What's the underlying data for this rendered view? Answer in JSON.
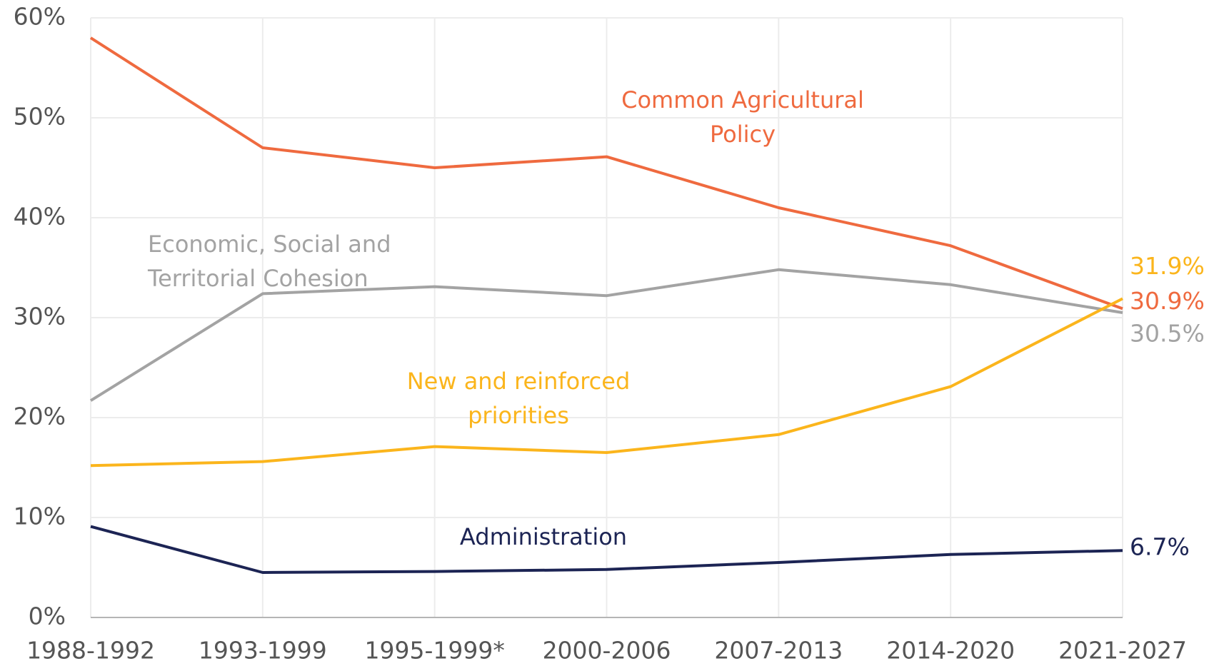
{
  "chart_data": {
    "type": "line",
    "categories": [
      "1988-1992",
      "1993-1999",
      "1995-1999*",
      "2000-2006",
      "2007-2013",
      "2014-2020",
      "2021-2027"
    ],
    "series": [
      {
        "name": "Common Agricultural Policy",
        "color": "#ef6a3f",
        "values": [
          58,
          47,
          45,
          46.1,
          41,
          37.2,
          30.9
        ],
        "value_labels": [
          null,
          null,
          null,
          null,
          null,
          null,
          "30.9%"
        ]
      },
      {
        "name": "Economic, Social and Territorial Cohesion",
        "color": "#a3a3a3",
        "values": [
          21.7,
          32.4,
          33.1,
          32.2,
          34.8,
          33.3,
          30.5
        ],
        "value_labels": [
          null,
          null,
          null,
          null,
          null,
          null,
          "30.5%"
        ]
      },
      {
        "name": "New and reinforced priorities",
        "color": "#fbb51c",
        "values": [
          15.2,
          15.6,
          17.1,
          16.5,
          18.3,
          23.1,
          31.9
        ],
        "value_labels": [
          null,
          null,
          null,
          null,
          null,
          null,
          "31.9%"
        ]
      },
      {
        "name": "Administration",
        "color": "#1c2454",
        "values": [
          9.1,
          4.5,
          4.6,
          4.8,
          5.5,
          6.3,
          6.7
        ],
        "value_labels": [
          null,
          null,
          null,
          null,
          null,
          null,
          "6.7%"
        ]
      }
    ],
    "ylim": [
      0,
      60
    ],
    "yticks": [
      {
        "value": 0,
        "label": "0%"
      },
      {
        "value": 10,
        "label": "10%"
      },
      {
        "value": 20,
        "label": "20%"
      },
      {
        "value": 30,
        "label": "30%"
      },
      {
        "value": 40,
        "label": "40%"
      },
      {
        "value": 50,
        "label": "50%"
      },
      {
        "value": 60,
        "label": "60%"
      }
    ],
    "grid": true
  }
}
